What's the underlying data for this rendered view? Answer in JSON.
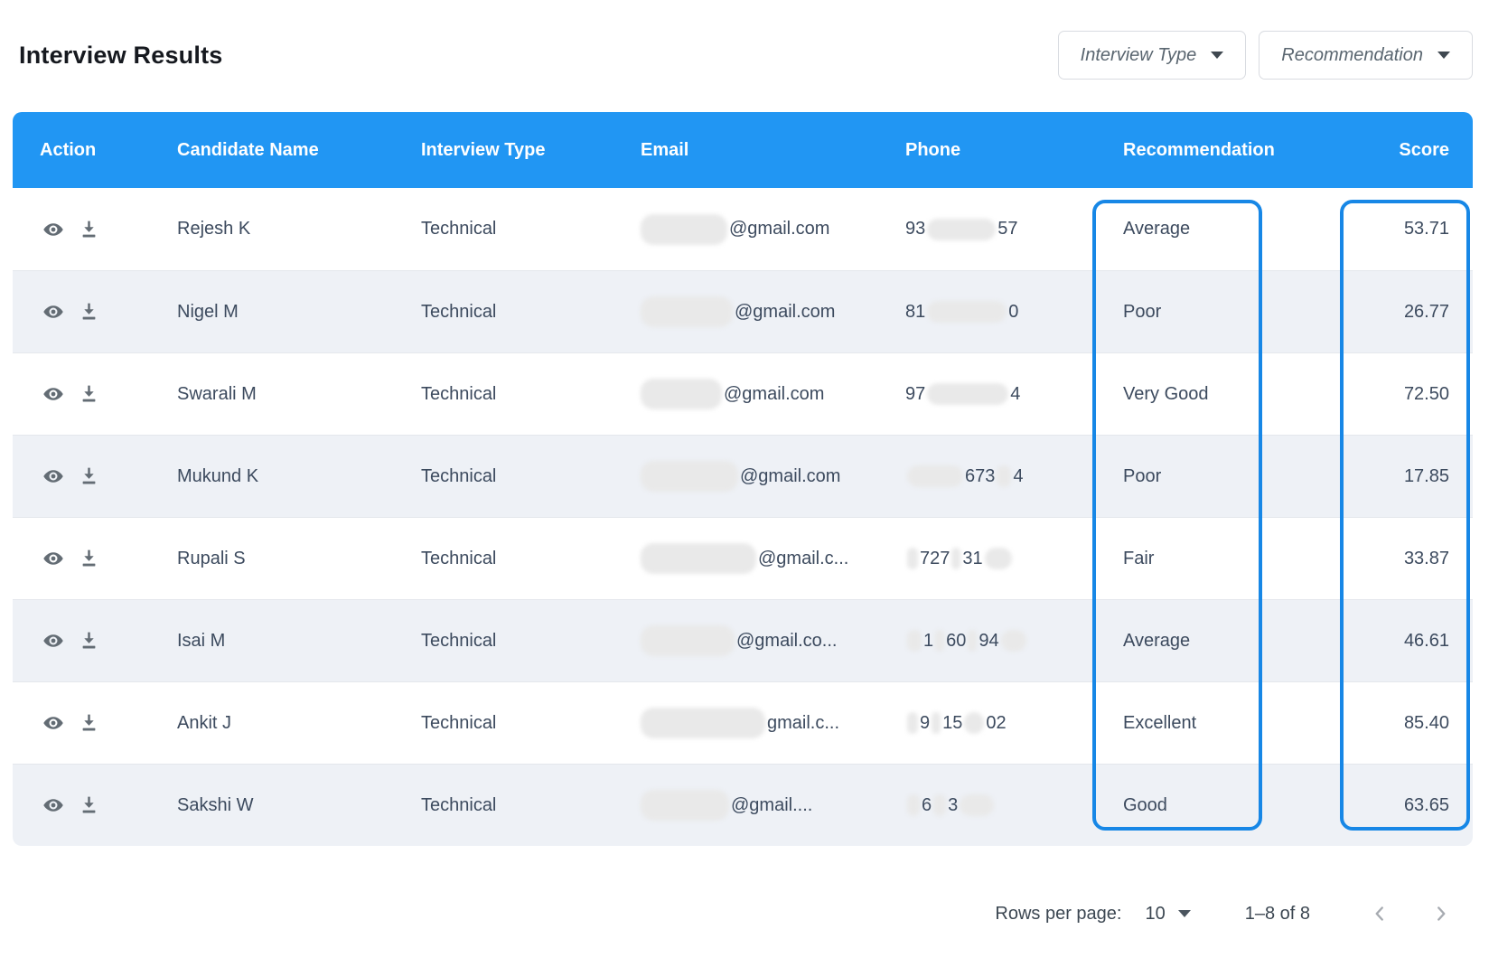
{
  "title": "Interview Results",
  "filters": {
    "interview_type": {
      "label": "Interview Type"
    },
    "recommendation": {
      "label": "Recommendation"
    }
  },
  "table": {
    "columns": {
      "action": "Action",
      "candidate_name": "Candidate Name",
      "interview_type": "Interview Type",
      "email": "Email",
      "phone": "Phone",
      "recommendation": "Recommendation",
      "score": "Score"
    },
    "rows": [
      {
        "candidate_name": "Rejesh K",
        "interview_type": "Technical",
        "email": {
          "blur_width": 96,
          "visible": "@gmail.com"
        },
        "phone_segments": [
          {
            "text": "93"
          },
          {
            "blur": 76
          },
          {
            "text": "57"
          }
        ],
        "recommendation": "Average",
        "score": "53.71"
      },
      {
        "candidate_name": "Nigel M",
        "interview_type": "Technical",
        "email": {
          "blur_width": 102,
          "visible": "@gmail.com"
        },
        "phone_segments": [
          {
            "text": "81"
          },
          {
            "blur": 88
          },
          {
            "text": "0"
          }
        ],
        "recommendation": "Poor",
        "score": "26.77"
      },
      {
        "candidate_name": "Swarali M",
        "interview_type": "Technical",
        "email": {
          "blur_width": 90,
          "visible": "@gmail.com"
        },
        "phone_segments": [
          {
            "text": "97"
          },
          {
            "blur": 90
          },
          {
            "text": "4"
          }
        ],
        "recommendation": "Very Good",
        "score": "72.50"
      },
      {
        "candidate_name": "Mukund K",
        "interview_type": "Technical",
        "email": {
          "blur_width": 108,
          "visible": "@gmail.com"
        },
        "phone_segments": [
          {
            "blur": 62
          },
          {
            "text": "673"
          },
          {
            "blur": 16
          },
          {
            "text": "4"
          }
        ],
        "recommendation": "Poor",
        "score": "17.85"
      },
      {
        "candidate_name": "Rupali S",
        "interview_type": "Technical",
        "email": {
          "blur_width": 128,
          "visible": "@gmail.c..."
        },
        "phone_segments": [
          {
            "blur": 12
          },
          {
            "text": "727"
          },
          {
            "blur": 10
          },
          {
            "text": "31"
          },
          {
            "blur": 30
          }
        ],
        "recommendation": "Fair",
        "score": "33.87"
      },
      {
        "candidate_name": "Isai M",
        "interview_type": "Technical",
        "email": {
          "blur_width": 104,
          "visible": "@gmail.co..."
        },
        "phone_segments": [
          {
            "blur": 16
          },
          {
            "text": "1"
          },
          {
            "blur": 10
          },
          {
            "text": "60"
          },
          {
            "blur": 10
          },
          {
            "text": "94"
          },
          {
            "blur": 28
          }
        ],
        "recommendation": "Average",
        "score": "46.61"
      },
      {
        "candidate_name": "Ankit J",
        "interview_type": "Technical",
        "email": {
          "blur_width": 138,
          "visible": "gmail.c..."
        },
        "phone_segments": [
          {
            "blur": 12
          },
          {
            "text": "9"
          },
          {
            "blur": 10
          },
          {
            "text": "15"
          },
          {
            "blur": 22
          },
          {
            "text": "02"
          }
        ],
        "recommendation": "Excellent",
        "score": "85.40"
      },
      {
        "candidate_name": "Sakshi W",
        "interview_type": "Technical",
        "email": {
          "blur_width": 98,
          "visible": "@gmail...."
        },
        "phone_segments": [
          {
            "blur": 14
          },
          {
            "text": "6"
          },
          {
            "blur": 14
          },
          {
            "text": "3"
          },
          {
            "blur": 38
          }
        ],
        "recommendation": "Good",
        "score": "63.65"
      }
    ]
  },
  "highlights": {
    "recommendation_column_boxed": true,
    "score_column_boxed": true,
    "box_color": "#1787e6"
  },
  "pagination": {
    "rows_per_page_label": "Rows per page:",
    "rows_per_page_value": "10",
    "range": "1–8 of 8"
  },
  "colors": {
    "header_bg": "#2196f3",
    "header_text": "#ffffff",
    "row_alt_bg": "#eef1f6",
    "cell_text": "#3c4a5e",
    "highlight_border": "#1787e6"
  }
}
